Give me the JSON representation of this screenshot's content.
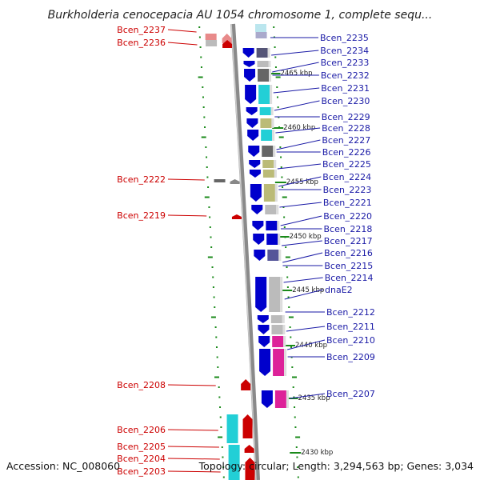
{
  "title": "Burkholderia cenocepacia AU 1054 chromosome 1, complete sequ...",
  "footer": {
    "accession": "Accession: NC_008060",
    "topology": "Topology: circular; Length: 3,294,563 bp; Genes: 3,034"
  },
  "colors": {
    "backbone": "#8a8a8a",
    "tick": "#1a8a1a",
    "forward_label": "#cc0000",
    "reverse_label": "#1a1aa6"
  },
  "kbp_labels": [
    "2465 kbp",
    "2460 kbp",
    "2455 kbp",
    "2450 kbp",
    "2445 kbp",
    "2440 kbp",
    "2435 kbp",
    "2430 kbp"
  ],
  "genes_forward": [
    {
      "name": "Bcen_2237",
      "color": "#e88a8a"
    },
    {
      "name": "Bcen_2236",
      "color": "#cc0000"
    },
    {
      "name": "Bcen_2222",
      "color": "#cc0000"
    },
    {
      "name": "Bcen_2219",
      "color": "#cc0000"
    },
    {
      "name": "Bcen_2208",
      "color": "#cc0000"
    },
    {
      "name": "Bcen_2206",
      "color": "#22cfd6"
    },
    {
      "name": "Bcen_2205",
      "color": "#cc0000"
    },
    {
      "name": "Bcen_2204",
      "color": "#cc0000"
    },
    {
      "name": "Bcen_2203",
      "color": "#cc0000"
    }
  ],
  "genes_reverse": [
    {
      "name": "Bcen_2235",
      "color": "#555577"
    },
    {
      "name": "Bcen_2234",
      "color": "#bbbbbb"
    },
    {
      "name": "Bcen_2233",
      "color": "#666666"
    },
    {
      "name": "Bcen_2232",
      "color": "#22cfd6"
    },
    {
      "name": "Bcen_2231",
      "color": "#22cfd6"
    },
    {
      "name": "Bcen_2230",
      "color": "#bbbb77"
    },
    {
      "name": "Bcen_2229",
      "color": "#22cfd6"
    },
    {
      "name": "Bcen_2228",
      "color": "#666666"
    },
    {
      "name": "Bcen_2227",
      "color": "#bbbb77"
    },
    {
      "name": "Bcen_2226",
      "color": "#bbbb77"
    },
    {
      "name": "Bcen_2225",
      "color": "#bbbb77"
    },
    {
      "name": "Bcen_2224",
      "color": "#bbbbbb"
    },
    {
      "name": "Bcen_2223",
      "color": "#0000cc"
    },
    {
      "name": "Bcen_2221",
      "color": "#0000cc"
    },
    {
      "name": "Bcen_2220",
      "color": "#555599"
    },
    {
      "name": "Bcen_2218",
      "color": "#bbbbbb"
    },
    {
      "name": "Bcen_2217",
      "color": "#bbbbbb"
    },
    {
      "name": "Bcen_2216",
      "color": "#bbbbbb"
    },
    {
      "name": "Bcen_2215",
      "color": "#dd2299"
    },
    {
      "name": "Bcen_2214",
      "color": "#dd2299"
    },
    {
      "name": "dnaE2",
      "color": "#dd2299"
    },
    {
      "name": "Bcen_2212",
      "color": "#ee8800"
    },
    {
      "name": "Bcen_2211",
      "color": "#22cfd6"
    },
    {
      "name": "Bcen_2210",
      "color": "#888822"
    },
    {
      "name": "Bcen_2209",
      "color": "#22cfd6"
    },
    {
      "name": "Bcen_2207",
      "color": "#22cfd6"
    }
  ]
}
